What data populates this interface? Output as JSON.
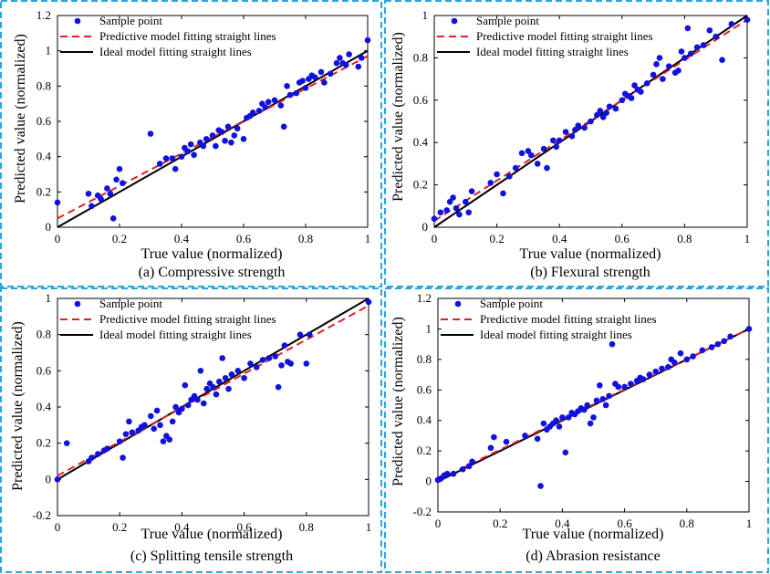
{
  "legend": {
    "sample": "Sample point",
    "predictive": "Predictive model fitting straight lines",
    "ideal": "Ideal model fitting straight lines"
  },
  "colors": {
    "points": "#1010e0",
    "predictive": "#e02020",
    "ideal": "#000000",
    "frame": "#2aa5e0"
  },
  "chart_data": [
    {
      "type": "scatter",
      "caption": "(a) Compressive strength",
      "xlabel": "True value (normalized)",
      "ylabel": "Predicted value (normalized)",
      "xlim": [
        0,
        1
      ],
      "ylim": [
        0,
        1.2
      ],
      "xticks": [
        0,
        0.2,
        0.4,
        0.6,
        0.8,
        1
      ],
      "xtick_labels": [
        "0",
        "0.2",
        "0.4",
        "0.6",
        "0.8",
        "1"
      ],
      "yticks": [
        0,
        0.2,
        0.4,
        0.6,
        0.8,
        1,
        1.2
      ],
      "ytick_labels": [
        "0",
        "0.2",
        "0.4",
        "0.6",
        "0.8",
        "1",
        "1.2"
      ],
      "predictive_line": {
        "x": [
          0,
          1
        ],
        "y": [
          0.05,
          0.97
        ]
      },
      "ideal_line": {
        "x": [
          0,
          1
        ],
        "y": [
          0,
          1
        ]
      },
      "points": [
        [
          0.0,
          0.14
        ],
        [
          0.1,
          0.19
        ],
        [
          0.11,
          0.12
        ],
        [
          0.13,
          0.18
        ],
        [
          0.14,
          0.16
        ],
        [
          0.16,
          0.22
        ],
        [
          0.17,
          0.19
        ],
        [
          0.18,
          0.05
        ],
        [
          0.19,
          0.27
        ],
        [
          0.2,
          0.33
        ],
        [
          0.21,
          0.25
        ],
        [
          0.3,
          0.53
        ],
        [
          0.33,
          0.36
        ],
        [
          0.35,
          0.39
        ],
        [
          0.37,
          0.39
        ],
        [
          0.38,
          0.33
        ],
        [
          0.4,
          0.4
        ],
        [
          0.41,
          0.45
        ],
        [
          0.42,
          0.43
        ],
        [
          0.43,
          0.47
        ],
        [
          0.44,
          0.41
        ],
        [
          0.46,
          0.48
        ],
        [
          0.47,
          0.46
        ],
        [
          0.48,
          0.5
        ],
        [
          0.5,
          0.52
        ],
        [
          0.51,
          0.46
        ],
        [
          0.52,
          0.55
        ],
        [
          0.53,
          0.54
        ],
        [
          0.54,
          0.49
        ],
        [
          0.55,
          0.57
        ],
        [
          0.56,
          0.48
        ],
        [
          0.57,
          0.52
        ],
        [
          0.58,
          0.56
        ],
        [
          0.6,
          0.5
        ],
        [
          0.61,
          0.62
        ],
        [
          0.62,
          0.63
        ],
        [
          0.63,
          0.65
        ],
        [
          0.65,
          0.66
        ],
        [
          0.66,
          0.7
        ],
        [
          0.67,
          0.68
        ],
        [
          0.68,
          0.71
        ],
        [
          0.7,
          0.72
        ],
        [
          0.72,
          0.69
        ],
        [
          0.73,
          0.57
        ],
        [
          0.74,
          0.8
        ],
        [
          0.75,
          0.75
        ],
        [
          0.77,
          0.76
        ],
        [
          0.78,
          0.82
        ],
        [
          0.79,
          0.83
        ],
        [
          0.8,
          0.79
        ],
        [
          0.81,
          0.84
        ],
        [
          0.82,
          0.86
        ],
        [
          0.83,
          0.85
        ],
        [
          0.85,
          0.88
        ],
        [
          0.86,
          0.82
        ],
        [
          0.88,
          0.87
        ],
        [
          0.9,
          0.93
        ],
        [
          0.91,
          0.96
        ],
        [
          0.92,
          0.93
        ],
        [
          0.93,
          0.92
        ],
        [
          0.94,
          0.98
        ],
        [
          0.97,
          0.91
        ],
        [
          0.98,
          0.96
        ],
        [
          1.0,
          1.06
        ]
      ]
    },
    {
      "type": "scatter",
      "caption": "(b) Flexural strength",
      "xlabel": "True value (normalized)",
      "ylabel": "Predicted value (normalized)",
      "xlim": [
        0,
        1
      ],
      "ylim": [
        0,
        1
      ],
      "xticks": [
        0,
        0.2,
        0.4,
        0.6,
        0.8,
        1
      ],
      "xtick_labels": [
        "0",
        "0.2",
        "0.4",
        "0.6",
        "0.8",
        "1"
      ],
      "yticks": [
        0,
        0.2,
        0.4,
        0.6,
        0.8,
        1
      ],
      "ytick_labels": [
        "0",
        "0.2",
        "0.4",
        "0.6",
        "0.8",
        "1"
      ],
      "predictive_line": {
        "x": [
          0,
          1
        ],
        "y": [
          0.03,
          0.98
        ]
      },
      "ideal_line": {
        "x": [
          0,
          1
        ],
        "y": [
          0,
          1
        ]
      },
      "points": [
        [
          0.0,
          0.04
        ],
        [
          0.02,
          0.07
        ],
        [
          0.04,
          0.08
        ],
        [
          0.05,
          0.12
        ],
        [
          0.06,
          0.14
        ],
        [
          0.07,
          0.09
        ],
        [
          0.08,
          0.06
        ],
        [
          0.1,
          0.12
        ],
        [
          0.11,
          0.07
        ],
        [
          0.12,
          0.17
        ],
        [
          0.18,
          0.21
        ],
        [
          0.2,
          0.25
        ],
        [
          0.22,
          0.16
        ],
        [
          0.24,
          0.24
        ],
        [
          0.26,
          0.28
        ],
        [
          0.28,
          0.35
        ],
        [
          0.3,
          0.36
        ],
        [
          0.31,
          0.34
        ],
        [
          0.33,
          0.3
        ],
        [
          0.35,
          0.37
        ],
        [
          0.36,
          0.28
        ],
        [
          0.38,
          0.41
        ],
        [
          0.39,
          0.38
        ],
        [
          0.4,
          0.41
        ],
        [
          0.42,
          0.45
        ],
        [
          0.44,
          0.43
        ],
        [
          0.45,
          0.46
        ],
        [
          0.46,
          0.48
        ],
        [
          0.48,
          0.47
        ],
        [
          0.5,
          0.5
        ],
        [
          0.52,
          0.53
        ],
        [
          0.53,
          0.55
        ],
        [
          0.54,
          0.52
        ],
        [
          0.55,
          0.54
        ],
        [
          0.56,
          0.57
        ],
        [
          0.58,
          0.56
        ],
        [
          0.6,
          0.6
        ],
        [
          0.61,
          0.63
        ],
        [
          0.62,
          0.62
        ],
        [
          0.63,
          0.61
        ],
        [
          0.64,
          0.67
        ],
        [
          0.65,
          0.65
        ],
        [
          0.66,
          0.64
        ],
        [
          0.68,
          0.68
        ],
        [
          0.7,
          0.72
        ],
        [
          0.71,
          0.77
        ],
        [
          0.72,
          0.8
        ],
        [
          0.73,
          0.7
        ],
        [
          0.75,
          0.76
        ],
        [
          0.77,
          0.73
        ],
        [
          0.78,
          0.74
        ],
        [
          0.79,
          0.83
        ],
        [
          0.8,
          0.8
        ],
        [
          0.81,
          0.94
        ],
        [
          0.82,
          0.82
        ],
        [
          0.84,
          0.85
        ],
        [
          0.86,
          0.86
        ],
        [
          0.88,
          0.93
        ],
        [
          0.9,
          0.9
        ],
        [
          0.92,
          0.79
        ],
        [
          0.95,
          0.96
        ],
        [
          1.0,
          0.98
        ]
      ]
    },
    {
      "type": "scatter",
      "caption": "(c) Splitting tensile strength",
      "xlabel": "True value (normalized)",
      "ylabel": "Predicted value (normalized)",
      "xlim": [
        0,
        1
      ],
      "ylim": [
        -0.2,
        1
      ],
      "xticks": [
        0,
        0.2,
        0.4,
        0.6,
        0.8,
        1
      ],
      "xtick_labels": [
        "0",
        "0.2",
        "0.4",
        "0.6",
        "0.8",
        "1"
      ],
      "yticks": [
        -0.2,
        0,
        0.2,
        0.4,
        0.6,
        0.8,
        1
      ],
      "ytick_labels": [
        "-0.2",
        "0",
        "0.2",
        "0.4",
        "0.6",
        "0.8",
        "1"
      ],
      "predictive_line": {
        "x": [
          0,
          1
        ],
        "y": [
          0.02,
          0.96
        ]
      },
      "ideal_line": {
        "x": [
          0,
          1
        ],
        "y": [
          0,
          1
        ]
      },
      "points": [
        [
          0.0,
          0.0
        ],
        [
          0.03,
          0.2
        ],
        [
          0.1,
          0.1
        ],
        [
          0.11,
          0.12
        ],
        [
          0.13,
          0.14
        ],
        [
          0.15,
          0.16
        ],
        [
          0.16,
          0.17
        ],
        [
          0.2,
          0.21
        ],
        [
          0.21,
          0.12
        ],
        [
          0.22,
          0.25
        ],
        [
          0.23,
          0.32
        ],
        [
          0.24,
          0.26
        ],
        [
          0.26,
          0.27
        ],
        [
          0.27,
          0.29
        ],
        [
          0.28,
          0.3
        ],
        [
          0.3,
          0.35
        ],
        [
          0.31,
          0.28
        ],
        [
          0.32,
          0.38
        ],
        [
          0.33,
          0.3
        ],
        [
          0.34,
          0.21
        ],
        [
          0.35,
          0.24
        ],
        [
          0.36,
          0.22
        ],
        [
          0.37,
          0.32
        ],
        [
          0.38,
          0.4
        ],
        [
          0.39,
          0.37
        ],
        [
          0.4,
          0.39
        ],
        [
          0.41,
          0.52
        ],
        [
          0.42,
          0.41
        ],
        [
          0.43,
          0.44
        ],
        [
          0.44,
          0.46
        ],
        [
          0.45,
          0.44
        ],
        [
          0.46,
          0.6
        ],
        [
          0.47,
          0.42
        ],
        [
          0.48,
          0.5
        ],
        [
          0.49,
          0.53
        ],
        [
          0.5,
          0.51
        ],
        [
          0.51,
          0.47
        ],
        [
          0.52,
          0.54
        ],
        [
          0.53,
          0.67
        ],
        [
          0.54,
          0.56
        ],
        [
          0.55,
          0.5
        ],
        [
          0.56,
          0.58
        ],
        [
          0.58,
          0.6
        ],
        [
          0.6,
          0.56
        ],
        [
          0.62,
          0.64
        ],
        [
          0.64,
          0.62
        ],
        [
          0.66,
          0.66
        ],
        [
          0.68,
          0.67
        ],
        [
          0.7,
          0.68
        ],
        [
          0.71,
          0.51
        ],
        [
          0.72,
          0.63
        ],
        [
          0.73,
          0.74
        ],
        [
          0.74,
          0.65
        ],
        [
          0.75,
          0.64
        ],
        [
          0.78,
          0.8
        ],
        [
          0.8,
          0.64
        ],
        [
          0.81,
          0.8
        ],
        [
          1.0,
          0.98
        ]
      ]
    },
    {
      "type": "scatter",
      "caption": "(d) Abrasion resistance",
      "xlabel": "True value (normalized)",
      "ylabel": "Predicted value (normalized)",
      "xlim": [
        0,
        1
      ],
      "ylim": [
        -0.2,
        1.2
      ],
      "xticks": [
        0,
        0.2,
        0.4,
        0.6,
        0.8,
        1
      ],
      "xtick_labels": [
        "0",
        "0.2",
        "0.4",
        "0.6",
        "0.8",
        "1"
      ],
      "yticks": [
        -0.2,
        0,
        0.2,
        0.4,
        0.6,
        0.8,
        1,
        1.2
      ],
      "ytick_labels": [
        "-0.2",
        "0",
        "0.2",
        "0.4",
        "0.6",
        "0.8",
        "1",
        "1.2"
      ],
      "predictive_line": {
        "x": [
          0,
          1
        ],
        "y": [
          0.01,
          1.0
        ]
      },
      "ideal_line": {
        "x": [
          0,
          1
        ],
        "y": [
          0,
          1
        ]
      },
      "points": [
        [
          0.0,
          0.01
        ],
        [
          0.01,
          0.02
        ],
        [
          0.02,
          0.04
        ],
        [
          0.03,
          0.05
        ],
        [
          0.05,
          0.05
        ],
        [
          0.08,
          0.08
        ],
        [
          0.1,
          0.1
        ],
        [
          0.11,
          0.13
        ],
        [
          0.17,
          0.22
        ],
        [
          0.18,
          0.29
        ],
        [
          0.22,
          0.26
        ],
        [
          0.28,
          0.3
        ],
        [
          0.32,
          0.28
        ],
        [
          0.33,
          -0.03
        ],
        [
          0.34,
          0.38
        ],
        [
          0.35,
          0.34
        ],
        [
          0.36,
          0.36
        ],
        [
          0.37,
          0.38
        ],
        [
          0.38,
          0.4
        ],
        [
          0.39,
          0.36
        ],
        [
          0.4,
          0.42
        ],
        [
          0.41,
          0.19
        ],
        [
          0.42,
          0.42
        ],
        [
          0.43,
          0.45
        ],
        [
          0.44,
          0.44
        ],
        [
          0.45,
          0.46
        ],
        [
          0.46,
          0.48
        ],
        [
          0.47,
          0.47
        ],
        [
          0.48,
          0.5
        ],
        [
          0.49,
          0.38
        ],
        [
          0.5,
          0.42
        ],
        [
          0.51,
          0.53
        ],
        [
          0.52,
          0.63
        ],
        [
          0.53,
          0.54
        ],
        [
          0.54,
          0.5
        ],
        [
          0.55,
          0.56
        ],
        [
          0.56,
          0.9
        ],
        [
          0.57,
          0.64
        ],
        [
          0.58,
          0.62
        ],
        [
          0.6,
          0.62
        ],
        [
          0.62,
          0.64
        ],
        [
          0.64,
          0.66
        ],
        [
          0.65,
          0.68
        ],
        [
          0.66,
          0.67
        ],
        [
          0.68,
          0.7
        ],
        [
          0.7,
          0.72
        ],
        [
          0.72,
          0.74
        ],
        [
          0.74,
          0.75
        ],
        [
          0.75,
          0.8
        ],
        [
          0.76,
          0.78
        ],
        [
          0.78,
          0.84
        ],
        [
          0.8,
          0.8
        ],
        [
          0.82,
          0.82
        ],
        [
          0.85,
          0.86
        ],
        [
          0.88,
          0.88
        ],
        [
          0.9,
          0.9
        ],
        [
          0.92,
          0.92
        ],
        [
          0.94,
          0.95
        ],
        [
          1.0,
          1.0
        ]
      ]
    }
  ]
}
